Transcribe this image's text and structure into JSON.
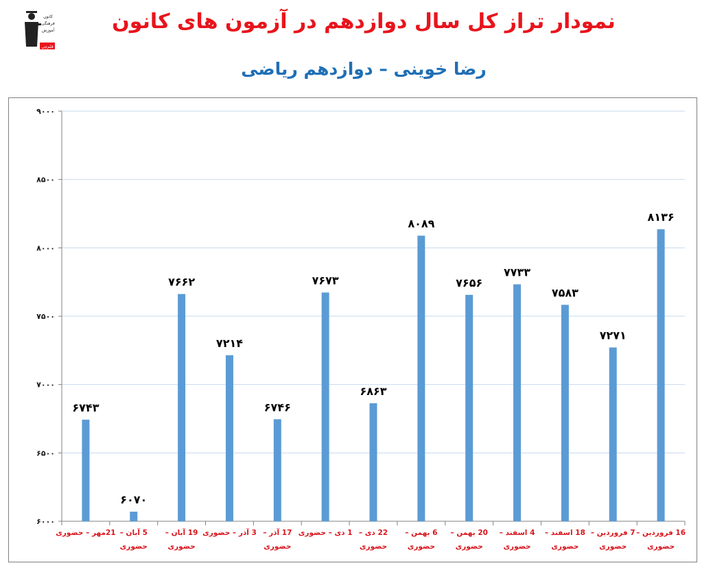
{
  "header": {
    "title": "نمودار تراز کل سال دوازدهم در آزمون های کانون",
    "subtitle": "رضا خوینی – دوازدهم ریاضی"
  },
  "logo": {
    "icon": "graduate-figure-icon",
    "lines": [
      "کانون",
      "فرهنگی",
      "آموزش"
    ],
    "badge": "قلم‌چی"
  },
  "colors": {
    "bar": "#5b9bd5",
    "title": "#e8141c",
    "subtitle": "#1f6fb5",
    "xlabel": "#d9141c",
    "grid": "#c6d9ee"
  },
  "chart_data": {
    "type": "bar",
    "title": "نمودار تراز کل سال دوازدهم در آزمون های کانون",
    "subtitle": "رضا خوینی – دوازدهم ریاضی",
    "categories": [
      [
        "21مهر – حضوری",
        ""
      ],
      [
        "5 آبان –",
        "حضوری"
      ],
      [
        "19 آبان –",
        "حضوری"
      ],
      [
        "3 آذر – حضوری",
        ""
      ],
      [
        "17 آذر –",
        "حضوری"
      ],
      [
        "1 دی – حضوری",
        ""
      ],
      [
        "22 دی –",
        "حضوری"
      ],
      [
        "6 بهمن –",
        "حضوری"
      ],
      [
        "20 بهمن –",
        "حضوری"
      ],
      [
        "4 اسفند –",
        "حضوری"
      ],
      [
        "18 اسفند –",
        "حضوری"
      ],
      [
        "7 فروردین –",
        "حضوری"
      ],
      [
        "16 فروردین –",
        "حضوری"
      ]
    ],
    "values": [
      6743,
      6070,
      7662,
      7214,
      6746,
      7673,
      6863,
      8089,
      7656,
      7733,
      7583,
      7271,
      8136
    ],
    "data_labels": [
      "۶۷۴۳",
      "۶۰۷۰",
      "۷۶۶۲",
      "۷۲۱۴",
      "۶۷۴۶",
      "۷۶۷۳",
      "۶۸۶۳",
      "۸۰۸۹",
      "۷۶۵۶",
      "۷۷۳۳",
      "۷۵۸۳",
      "۷۲۷۱",
      "۸۱۳۶"
    ],
    "ylim": [
      6000,
      9000
    ],
    "yticks": [
      6000,
      6500,
      7000,
      7500,
      8000,
      8500,
      9000
    ],
    "ytick_labels": [
      "۶۰۰۰",
      "۶۵۰۰",
      "۷۰۰۰",
      "۷۵۰۰",
      "۸۰۰۰",
      "۸۵۰۰",
      "۹۰۰۰"
    ],
    "grid": true,
    "legend": "none"
  }
}
